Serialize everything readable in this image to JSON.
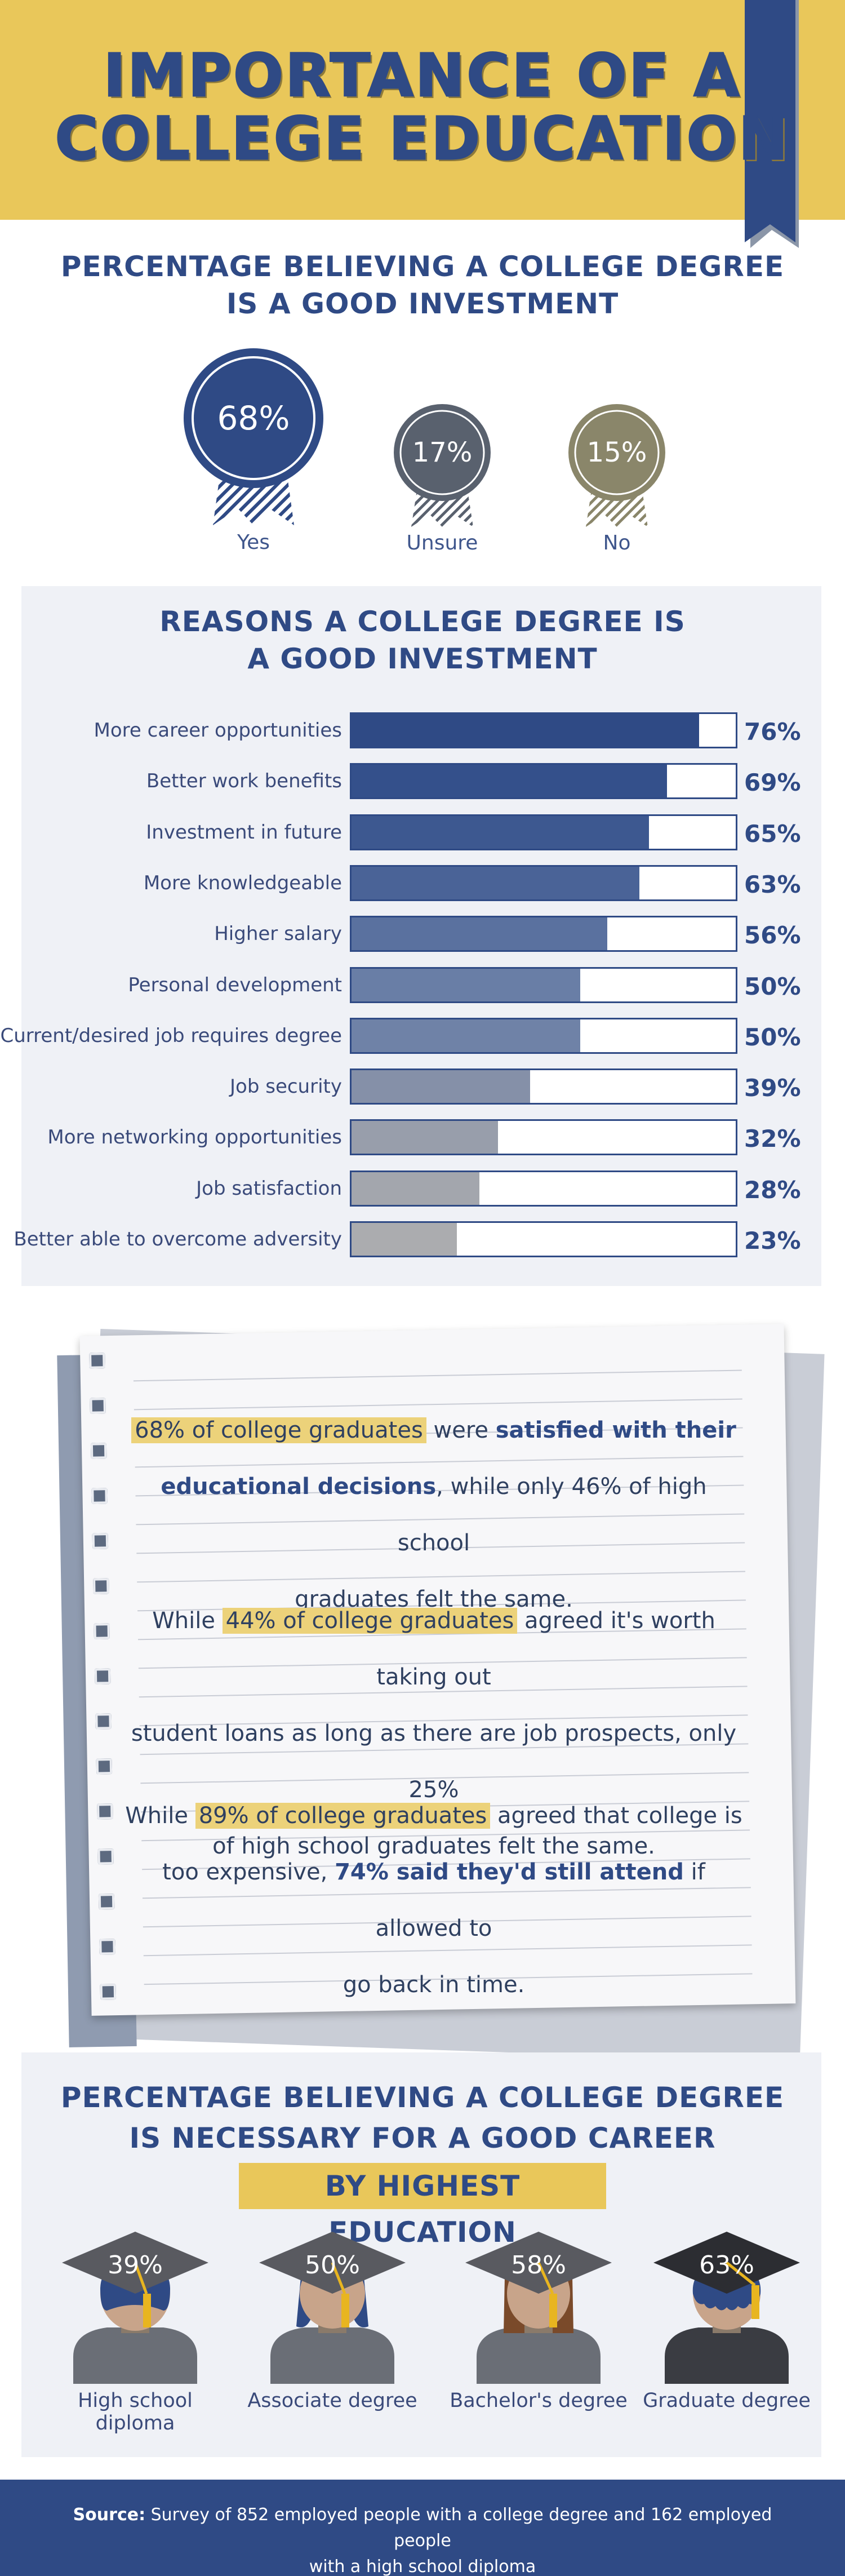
{
  "header": {
    "title_line1": "IMPORTANCE OF A",
    "title_line2": "COLLEGE EDUCATION"
  },
  "colors": {
    "navy": "#2f4a85",
    "gold": "#e9c75a",
    "panel": "#eff1f6",
    "slate": "#59616e",
    "olive": "#8a866a"
  },
  "investment": {
    "title_line1": "PERCENTAGE BELIEVING A COLLEGE DEGREE",
    "title_line2": "IS A GOOD INVESTMENT",
    "badges": [
      {
        "value": 68,
        "text": "68%",
        "label": "Yes",
        "color": "#2f4a85"
      },
      {
        "value": 17,
        "text": "17%",
        "label": "Unsure",
        "color": "#59616e"
      },
      {
        "value": 15,
        "text": "15%",
        "label": "No",
        "color": "#8a866a"
      }
    ]
  },
  "reasons": {
    "title_line1": "REASONS A COLLEGE DEGREE IS",
    "title_line2": "A GOOD INVESTMENT",
    "items": [
      {
        "label": "More career opportunities",
        "value": 76,
        "text": "76%",
        "color": "#2f4a85"
      },
      {
        "label": "Better work benefits",
        "value": 69,
        "text": "69%",
        "color": "#34508b"
      },
      {
        "label": "Investment in future",
        "value": 65,
        "text": "65%",
        "color": "#3d5890"
      },
      {
        "label": "More knowledgeable",
        "value": 63,
        "text": "63%",
        "color": "#4a6397"
      },
      {
        "label": "Higher salary",
        "value": 56,
        "text": "56%",
        "color": "#5a719f"
      },
      {
        "label": "Personal development",
        "value": 50,
        "text": "50%",
        "color": "#697ea6"
      },
      {
        "label": "Current/desired job requires degree",
        "value": 50,
        "text": "50%",
        "color": "#6f82a7"
      },
      {
        "label": "Job security",
        "value": 39,
        "text": "39%",
        "color": "#8590a8"
      },
      {
        "label": "More networking opportunities",
        "value": 32,
        "text": "32%",
        "color": "#989eab"
      },
      {
        "label": "Job satisfaction",
        "value": 28,
        "text": "28%",
        "color": "#a3a6ad"
      },
      {
        "label": "Better able to overcome adversity",
        "value": 23,
        "text": "23%",
        "color": "#abacaf"
      }
    ]
  },
  "notes": {
    "p1": {
      "hl": "68% of college graduates",
      "a": " were ",
      "b": "satisfied with their",
      "b2": "educational decisions",
      "c": ", while only 46% of high school",
      "d": "graduates felt the same."
    },
    "p2": {
      "a": "While ",
      "hl": "44% of college graduates",
      "b": " agreed it's worth taking out",
      "c": "student loans as long as there are job prospects, only 25%",
      "d": "of high school graduates felt the same."
    },
    "p3": {
      "a": "While ",
      "hl": "89% of college graduates",
      "b": " agreed that college is",
      "c": "too expensive, ",
      "bold": "74% said they'd still attend",
      "d": " if allowed to",
      "e": "go back in time."
    }
  },
  "career": {
    "title_line1": "PERCENTAGE BELIEVING A COLLEGE DEGREE",
    "title_line2": "IS NECESSARY FOR A GOOD CAREER",
    "subtitle": "BY HIGHEST EDUCATION",
    "groups": [
      {
        "value": 39,
        "text": "39%",
        "label": "High school diploma"
      },
      {
        "value": 50,
        "text": "50%",
        "label": "Associate degree"
      },
      {
        "value": 58,
        "text": "58%",
        "label": "Bachelor's degree"
      },
      {
        "value": 63,
        "text": "63%",
        "label": "Graduate degree"
      }
    ]
  },
  "footer": {
    "source_label": "Source:",
    "source_line1": " Survey of 852 employed people with a college degree and 162 employed people",
    "source_line2": "with a high school diploma"
  }
}
